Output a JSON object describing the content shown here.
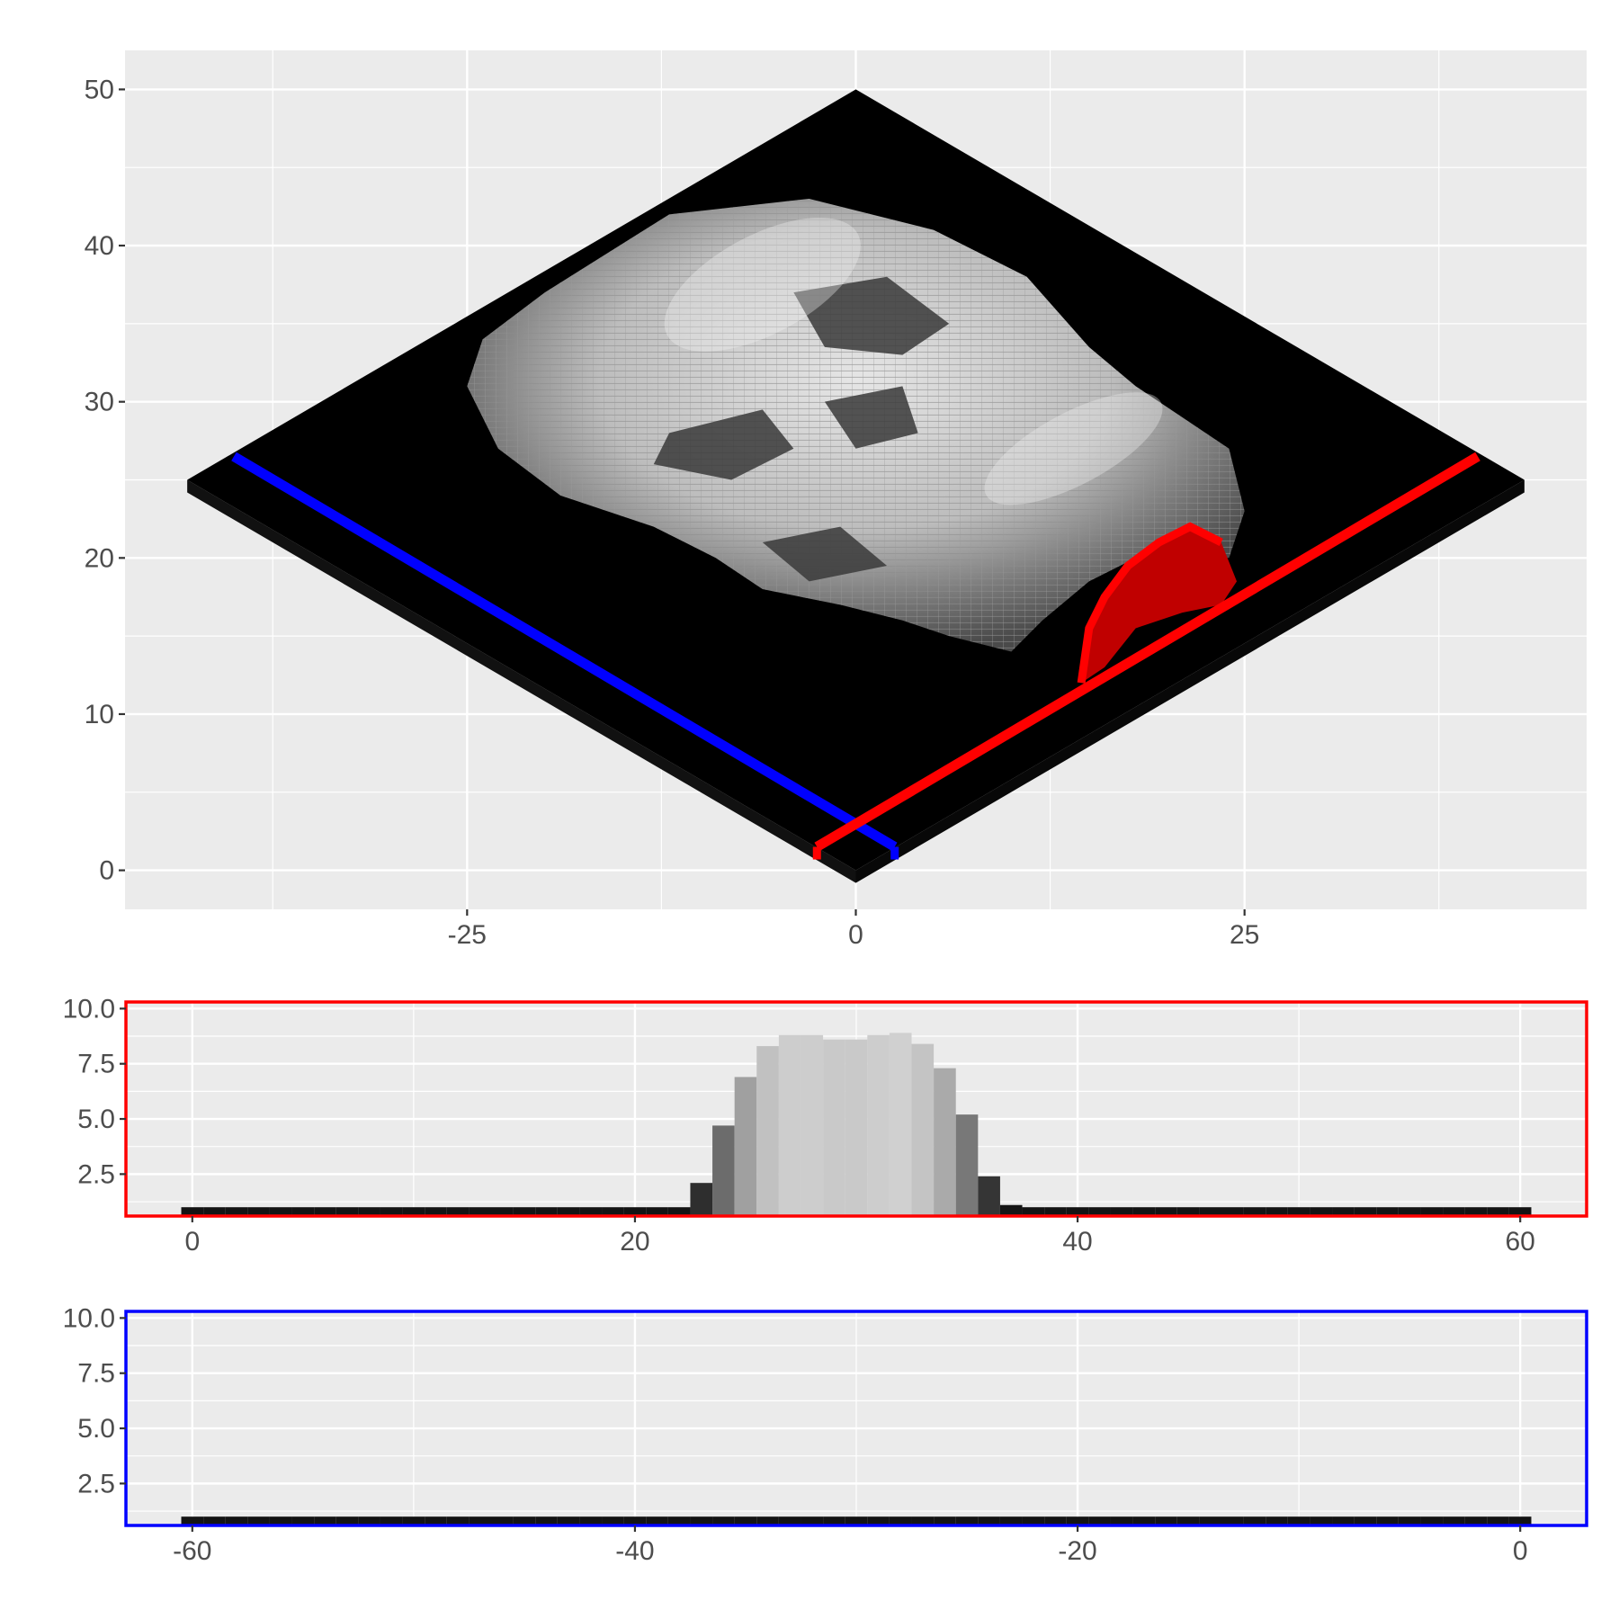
{
  "colors": {
    "panel_bg": "#ebebeb",
    "grid": "#ffffff",
    "floor": "#000000",
    "red_line": "#ff0000",
    "blue_line": "#0000ff",
    "tick_text": "#4d4d4d",
    "tick_mark": "#333333"
  },
  "chart_data": [
    {
      "type": "isometric-voxel-heatmap",
      "description_source": "3D voxel rendering of a skull on a black square floor, projected on x/y axes",
      "x_axis": {
        "lim": [
          -47,
          47
        ],
        "ticks": [
          -25,
          0,
          25
        ],
        "tick_labels": [
          "-25",
          "0",
          "25"
        ]
      },
      "y_axis": {
        "lim": [
          -2.5,
          52.5
        ],
        "ticks": [
          0,
          10,
          20,
          30,
          40,
          50
        ],
        "tick_labels": [
          "0",
          "10",
          "20",
          "30",
          "40",
          "50"
        ]
      },
      "floor_vertices": [
        [
          0,
          0
        ],
        [
          43,
          25
        ],
        [
          0,
          50
        ],
        [
          -43,
          25
        ]
      ],
      "red_cross_section": {
        "from": [
          -2.5,
          1.5
        ],
        "to": [
          40,
          26.5
        ]
      },
      "blue_cross_section": {
        "from": [
          2.5,
          1.5
        ],
        "to": [
          -40,
          26.5
        ]
      },
      "grid": true,
      "legend": "none"
    },
    {
      "type": "bar",
      "panel_border_color": "#ff0000",
      "x_axis": {
        "lim": [
          -3,
          63
        ],
        "ticks": [
          0,
          20,
          40,
          60
        ],
        "tick_labels": [
          "0",
          "20",
          "40",
          "60"
        ]
      },
      "y_axis": {
        "lim": [
          0.6,
          10.3
        ],
        "ticks": [
          2.5,
          5.0,
          7.5,
          10.0
        ],
        "tick_labels": [
          "2.5",
          "5.0",
          "7.5",
          "10.0"
        ]
      },
      "x": [
        0,
        1,
        2,
        3,
        4,
        5,
        6,
        7,
        8,
        9,
        10,
        11,
        12,
        13,
        14,
        15,
        16,
        17,
        18,
        19,
        20,
        21,
        22,
        23,
        24,
        25,
        26,
        27,
        28,
        29,
        30,
        31,
        32,
        33,
        34,
        35,
        36,
        37,
        38,
        39,
        40,
        41,
        42,
        43,
        44,
        45,
        46,
        47,
        48,
        49,
        50,
        51,
        52,
        53,
        54,
        55,
        56,
        57,
        58,
        59,
        60
      ],
      "values": [
        1,
        1,
        1,
        1,
        1,
        1,
        1,
        1,
        1,
        1,
        1,
        1,
        1,
        1,
        1,
        1,
        1,
        1,
        1,
        1,
        1,
        1,
        1,
        2.1,
        4.7,
        6.9,
        8.3,
        8.8,
        8.8,
        8.6,
        8.6,
        8.8,
        8.9,
        8.4,
        7.3,
        5.2,
        2.4,
        1.1,
        1,
        1,
        1,
        1,
        1,
        1,
        1,
        1,
        1,
        1,
        1,
        1,
        1,
        1,
        1,
        1,
        1,
        1,
        1,
        1,
        1,
        1,
        1
      ],
      "grid": true,
      "legend": "none"
    },
    {
      "type": "bar",
      "panel_border_color": "#0000ff",
      "x_axis": {
        "lim": [
          -63,
          3
        ],
        "ticks": [
          -60,
          -40,
          -20,
          0
        ],
        "tick_labels": [
          "-60",
          "-40",
          "-20",
          "0"
        ]
      },
      "y_axis": {
        "lim": [
          0.6,
          10.3
        ],
        "ticks": [
          2.5,
          5.0,
          7.5,
          10.0
        ],
        "tick_labels": [
          "2.5",
          "5.0",
          "7.5",
          "10.0"
        ]
      },
      "x": [
        -60,
        -59,
        -58,
        -57,
        -56,
        -55,
        -54,
        -53,
        -52,
        -51,
        -50,
        -49,
        -48,
        -47,
        -46,
        -45,
        -44,
        -43,
        -42,
        -41,
        -40,
        -39,
        -38,
        -37,
        -36,
        -35,
        -34,
        -33,
        -32,
        -31,
        -30,
        -29,
        -28,
        -27,
        -26,
        -25,
        -24,
        -23,
        -22,
        -21,
        -20,
        -19,
        -18,
        -17,
        -16,
        -15,
        -14,
        -13,
        -12,
        -11,
        -10,
        -9,
        -8,
        -7,
        -6,
        -5,
        -4,
        -3,
        -2,
        -1,
        0
      ],
      "values": [
        1,
        1,
        1,
        1,
        1,
        1,
        1,
        1,
        1,
        1,
        1,
        1,
        1,
        1,
        1,
        1,
        1,
        1,
        1,
        1,
        1,
        1,
        1,
        1,
        1,
        1,
        1,
        1,
        1,
        1,
        1,
        1,
        1,
        1,
        1,
        1,
        1,
        1,
        1,
        1,
        1,
        1,
        1,
        1,
        1,
        1,
        1,
        1,
        1,
        1,
        1,
        1,
        1,
        1,
        1,
        1,
        1,
        1,
        1,
        1,
        1
      ],
      "grid": true,
      "legend": "none"
    }
  ]
}
